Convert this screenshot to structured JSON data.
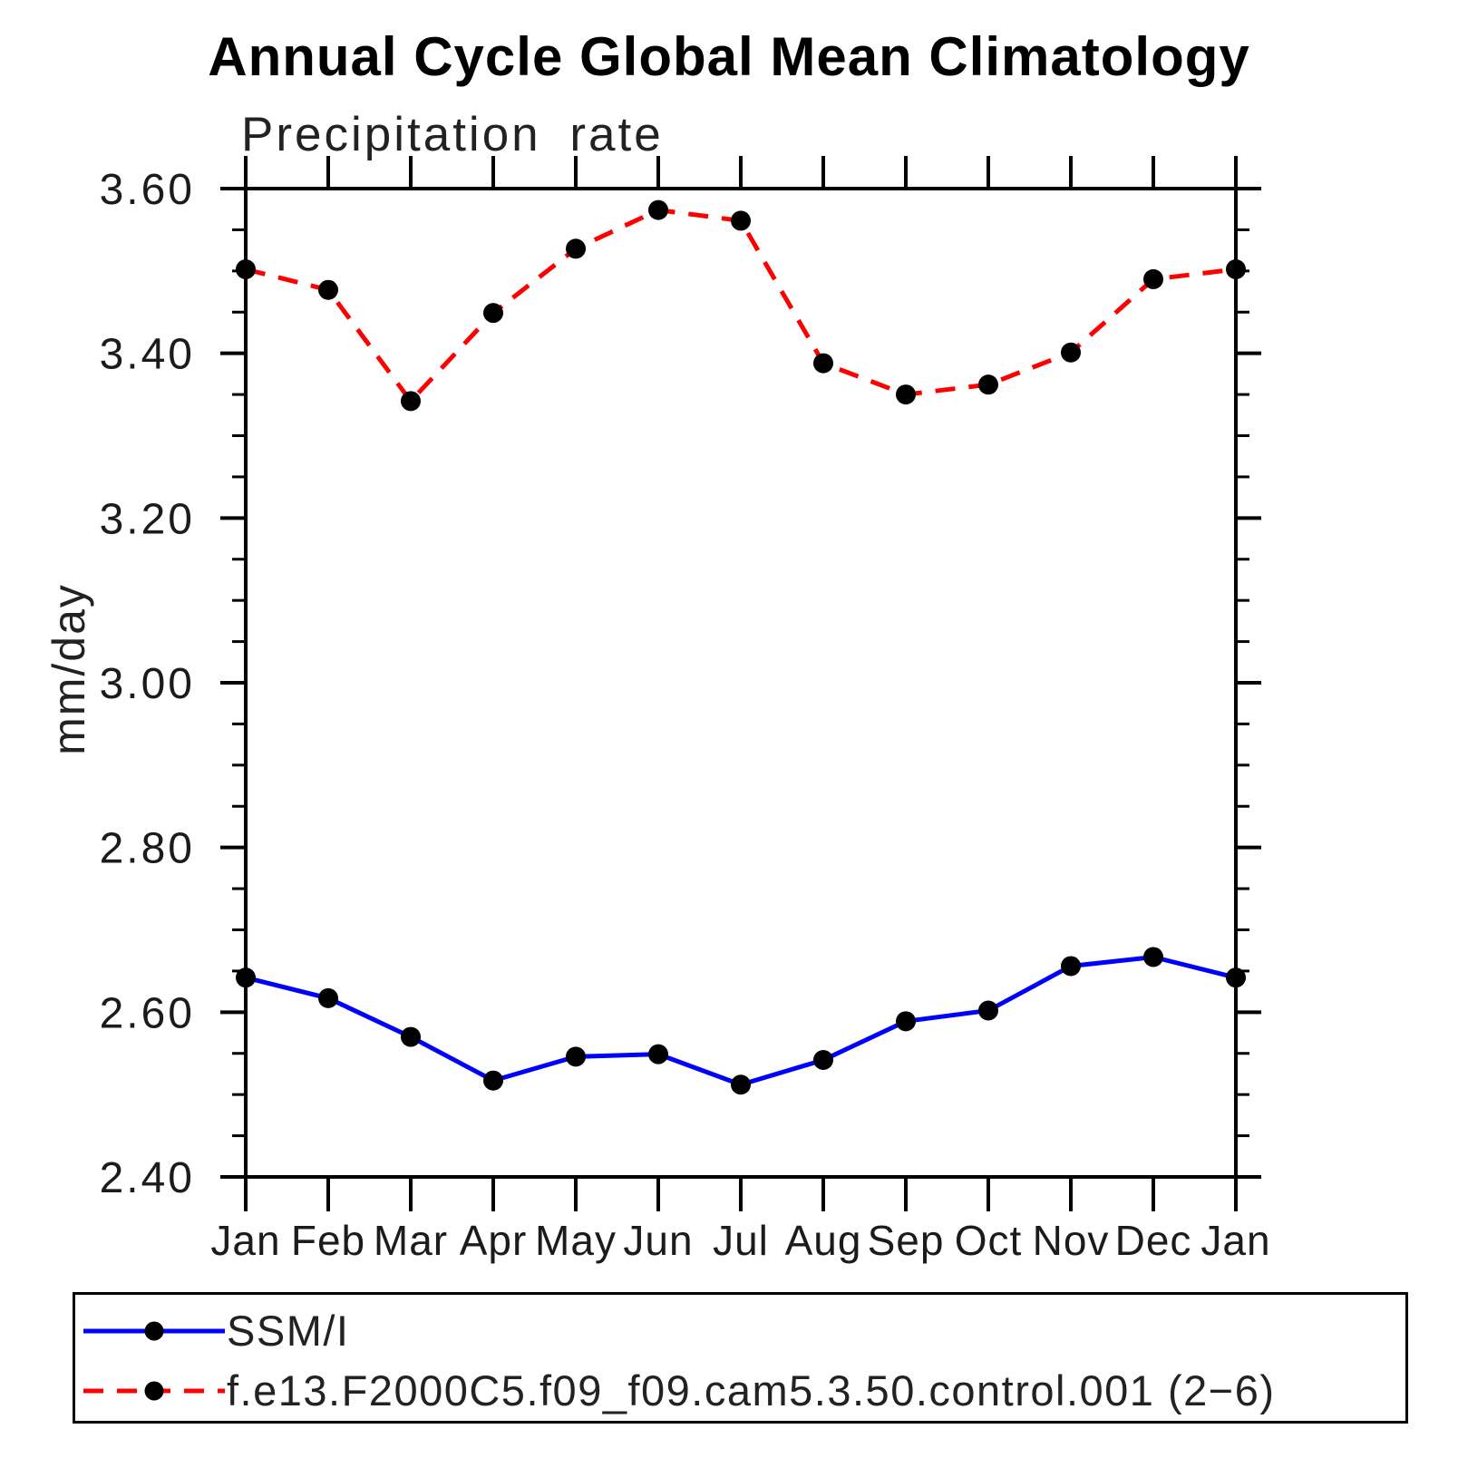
{
  "title": "Annual Cycle Global Mean Climatology",
  "chart_data": {
    "type": "line",
    "title": "Annual Cycle Global Mean Climatology",
    "subtitle": "Precipitation rate",
    "xlabel": "",
    "ylabel": "mm/day",
    "categories": [
      "Jan",
      "Feb",
      "Mar",
      "Apr",
      "May",
      "Jun",
      "Jul",
      "Aug",
      "Sep",
      "Oct",
      "Nov",
      "Dec",
      "Jan"
    ],
    "ylim": [
      2.4,
      3.6
    ],
    "y_major_step": 0.2,
    "y_minor_step": 0.05,
    "y_tick_decimals": 2,
    "grid": false,
    "frame": "box-with-mirrored-ticks",
    "legend_position": "bottom-left-box",
    "axis_color": "#000000",
    "marker_color": "#000000",
    "series": [
      {
        "name": "SSM/I",
        "color": "#0000ff",
        "line_style": "solid",
        "marker": "circle",
        "values": [
          2.642,
          2.617,
          2.57,
          2.517,
          2.546,
          2.549,
          2.512,
          2.542,
          2.589,
          2.602,
          2.656,
          2.667,
          2.642
        ]
      },
      {
        "name": "f.e13.F2000C5.f09_f09.cam5.3.50.control.001 (2−6)",
        "color": "#ff0000",
        "line_style": "dashed",
        "marker": "circle",
        "values": [
          3.502,
          3.477,
          3.342,
          3.449,
          3.527,
          3.574,
          3.561,
          3.388,
          3.35,
          3.362,
          3.401,
          3.49,
          3.502
        ]
      }
    ]
  }
}
